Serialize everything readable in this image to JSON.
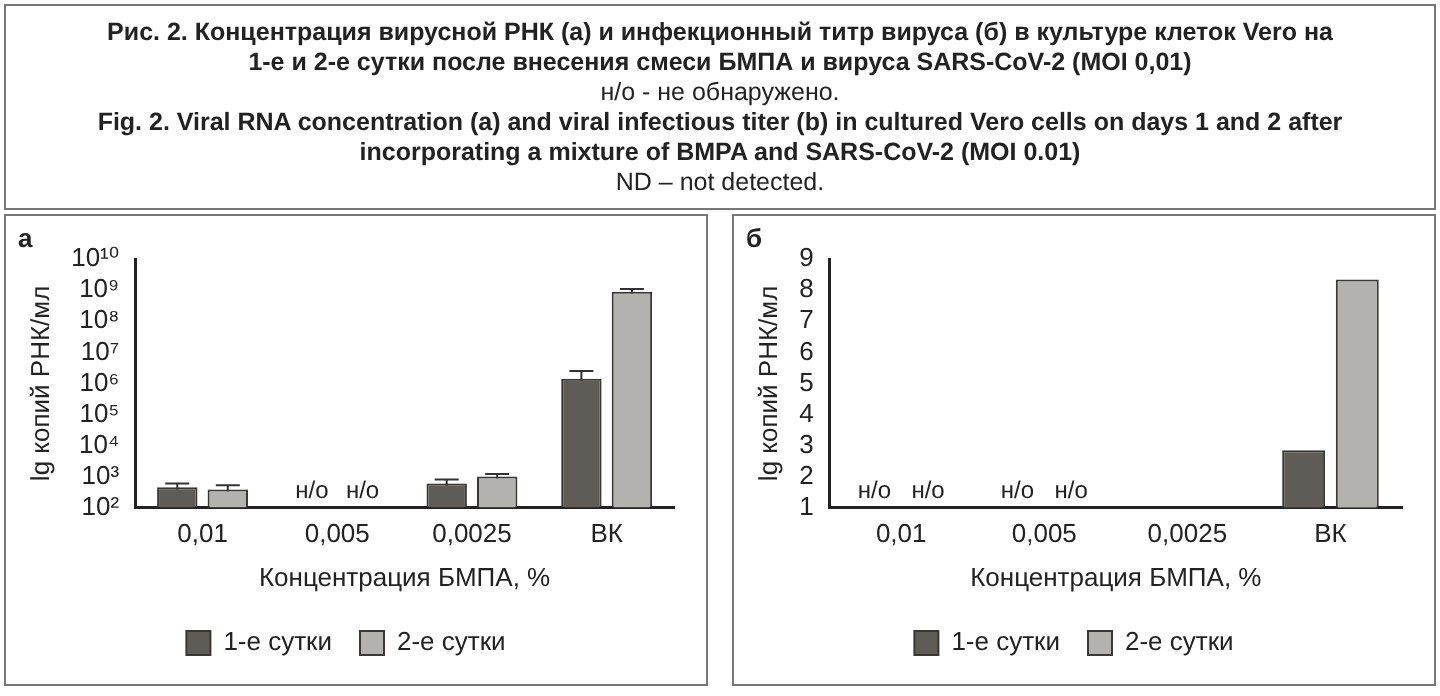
{
  "chart_data": [
    {
      "type": "other",
      "title": "Рис. 2. Концентрация вирусной РНК (а) и инфекционный титр вируса (б) в культуре клеток Vero на 1-е и 2-е сутки после внесения смеси БМПА и вируса SARS-CoV-2 (MOI 0,01)",
      "subtitle": "н/о - не обнаружено.",
      "annotations": [
        "Fig. 2. Viral RNA concentration (a) and viral infectious titer (b) in cultured Vero cells on days 1 and 2 after incorporating a mixture of BMPA and SARS-CoV-2 (MOI 0.01)",
        "ND – not detected."
      ]
    },
    {
      "type": "bar",
      "title": "а",
      "xlabel": "Концентрация БМПА, %",
      "ylabel": "lg копий РНК/мл",
      "categories": [
        "0,01",
        "0,005",
        "0,0025",
        "ВК"
      ],
      "log": true,
      "ylim": [
        100,
        10000000000
      ],
      "yticks": [
        {
          "value": 100,
          "label": "10²"
        },
        {
          "value": 1000,
          "label": "10³"
        },
        {
          "value": 10000,
          "label": "10⁴"
        },
        {
          "value": 100000,
          "label": "10⁵"
        },
        {
          "value": 1000000,
          "label": "10⁶"
        },
        {
          "value": 10000000,
          "label": "10⁷"
        },
        {
          "value": 100000000,
          "label": "10⁸"
        },
        {
          "value": 1000000000,
          "label": "10⁹"
        },
        {
          "value": 10000000000,
          "label": "10¹⁰"
        }
      ],
      "legend": "bottom",
      "grid": false,
      "series": [
        {
          "name": "1-е сутки",
          "color": "#5f5b57",
          "values": [
            450,
            null,
            600,
            1400000
          ],
          "errors": [
            150,
            null,
            200,
            1100000
          ],
          "value_labels": [
            null,
            "н/о",
            null,
            null
          ]
        },
        {
          "name": "2-е сутки",
          "color": "#b4b2af",
          "values": [
            380,
            null,
            1000,
            900000000
          ],
          "errors": [
            140,
            null,
            200,
            200000000
          ],
          "value_labels": [
            null,
            "н/о",
            null,
            null
          ]
        }
      ]
    },
    {
      "type": "bar",
      "title": "б",
      "xlabel": "Концентрация БМПА, %",
      "ylabel": "lg копий РНК/мл",
      "categories": [
        "0,01",
        "0,005",
        "0,0025",
        "ВК"
      ],
      "ylim": [
        1,
        9
      ],
      "yticks": [
        1,
        2,
        3,
        4,
        5,
        6,
        7,
        8,
        9
      ],
      "legend": "bottom",
      "grid": false,
      "series": [
        {
          "name": "1-е сутки",
          "color": "#5f5b57",
          "values": [
            null,
            null,
            null,
            2.85
          ],
          "value_labels": [
            "н/о",
            "н/о",
            null,
            null
          ]
        },
        {
          "name": "2-е сутки",
          "color": "#b4b2af",
          "values": [
            null,
            null,
            null,
            8.35
          ],
          "value_labels": [
            "н/о",
            "н/о",
            null,
            null
          ]
        }
      ]
    }
  ]
}
